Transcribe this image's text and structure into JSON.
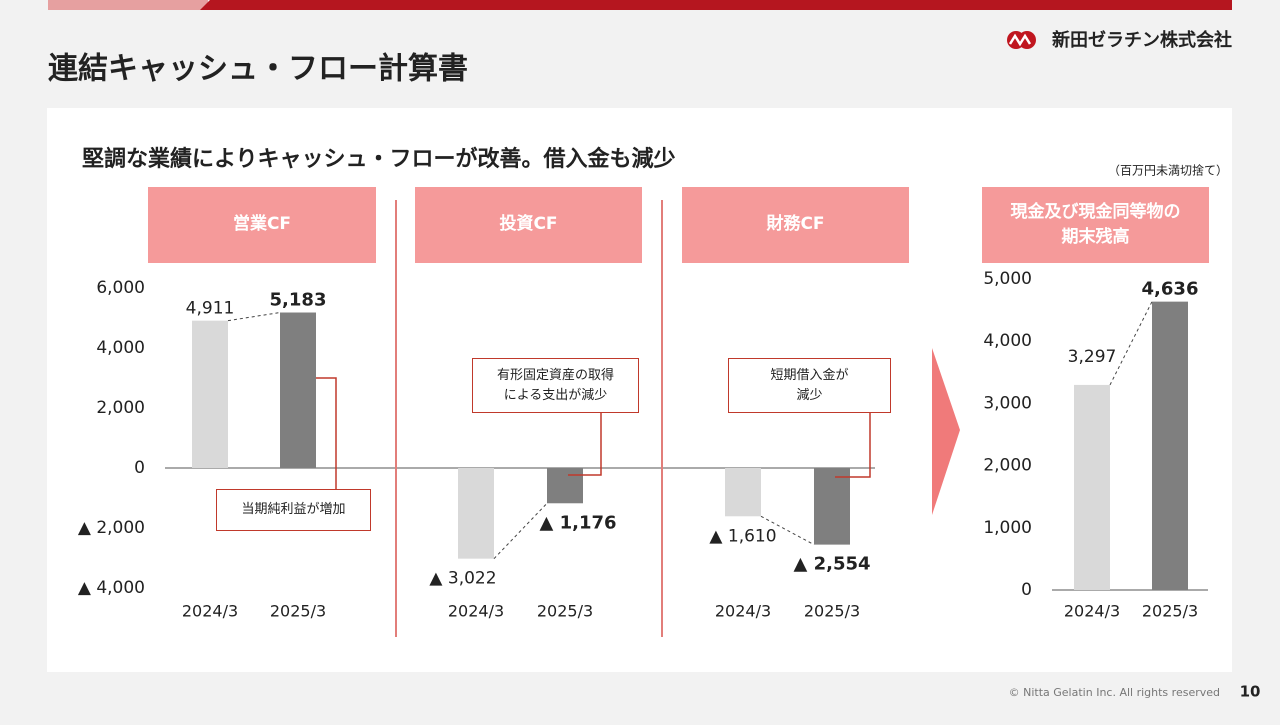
{
  "header": {
    "title": "連結キャッシュ・フロー計算書",
    "company": "新田ゼラチン株式会社"
  },
  "subtitle": "堅調な業績によりキャッシュ・フローが改善。借入金も減少",
  "unit_note": "（百万円未満切捨て）",
  "chart_data": [
    {
      "type": "bar",
      "title": "営業CF",
      "categories": [
        "2024/3",
        "2025/3"
      ],
      "values": [
        4911,
        5183
      ],
      "value_labels": [
        "4,911",
        "5,183"
      ],
      "colors": [
        "#d9d9d9",
        "#7f7f7f"
      ],
      "ylim": [
        -4000,
        6000
      ],
      "yticks": [
        {
          "value": -4000,
          "label": "▲ 4,000"
        },
        {
          "value": -2000,
          "label": "▲ 2,000"
        },
        0,
        {
          "value": 2000,
          "label": "2,000"
        },
        {
          "value": 4000,
          "label": "4,000"
        },
        {
          "value": 6000,
          "label": "6,000"
        }
      ],
      "annotation": "当期純利益が増加"
    },
    {
      "type": "bar",
      "title": "投資CF",
      "categories": [
        "2024/3",
        "2025/3"
      ],
      "values": [
        -3022,
        -1176
      ],
      "value_labels": [
        "▲ 3,022",
        "▲ 1,176"
      ],
      "colors": [
        "#d9d9d9",
        "#7f7f7f"
      ],
      "ylim": [
        -4000,
        6000
      ],
      "annotation": "有形固定資産の取得による支出が減少"
    },
    {
      "type": "bar",
      "title": "財務CF",
      "categories": [
        "2024/3",
        "2025/3"
      ],
      "values": [
        -1610,
        -2554
      ],
      "value_labels": [
        "▲ 1,610",
        "▲ 2,554"
      ],
      "colors": [
        "#d9d9d9",
        "#7f7f7f"
      ],
      "ylim": [
        -4000,
        6000
      ],
      "annotation": "短期借入金が減少"
    },
    {
      "type": "bar",
      "title": "現金及び現金同等物の期末残高",
      "categories": [
        "2024/3",
        "2025/3"
      ],
      "values": [
        3297,
        4636
      ],
      "value_labels": [
        "3,297",
        "4,636"
      ],
      "colors": [
        "#d9d9d9",
        "#7f7f7f"
      ],
      "ylim": [
        0,
        5000
      ],
      "yticks": [
        0,
        {
          "value": 1000,
          "label": "1,000"
        },
        {
          "value": 2000,
          "label": "2,000"
        },
        {
          "value": 3000,
          "label": "3,000"
        },
        {
          "value": 4000,
          "label": "4,000"
        },
        {
          "value": 5000,
          "label": "5,000"
        }
      ]
    }
  ],
  "footer": {
    "copyright": "© Nitta Gelatin Inc. All rights reserved",
    "page": "10"
  }
}
